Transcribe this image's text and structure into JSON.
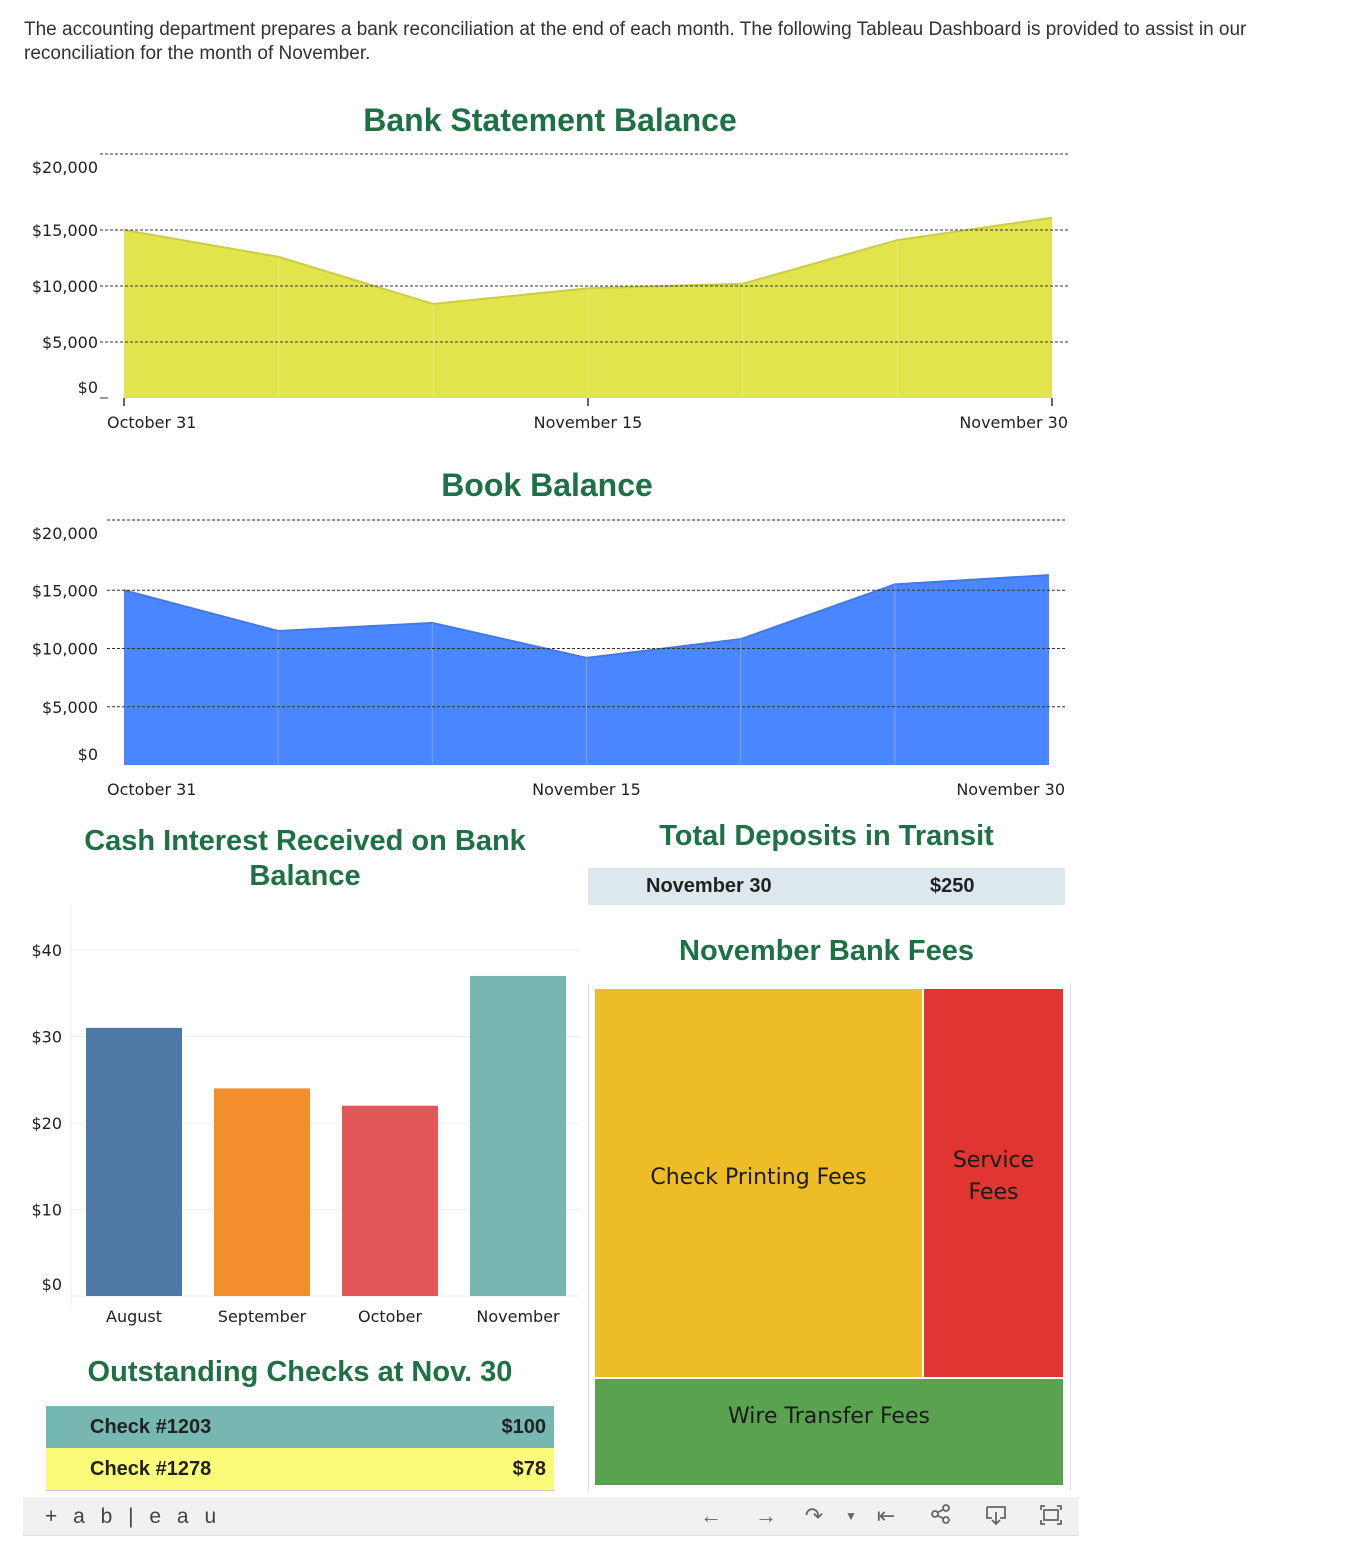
{
  "intro": "The accounting department prepares a bank reconciliation at the end of each month. The following Tableau Dashboard is provided to assist in our reconciliation for the month of November.",
  "colors": {
    "title_green": "#1e7045",
    "bank_fill": "#e1e44a",
    "book_fill": "#4a86ff",
    "bar_blue": "#4e78a5",
    "bar_orange": "#f28e2c",
    "bar_red": "#e1575a",
    "bar_teal": "#76b7b2",
    "fee_yellow": "#edbc26",
    "fee_red": "#e03531",
    "fee_green": "#59a24f"
  },
  "chart_data": [
    {
      "type": "area",
      "title": "Bank Statement Balance",
      "x_tick_labels": [
        "October 31",
        "November 15",
        "November 30"
      ],
      "y_tick_labels": [
        "$20,000",
        "$15,000",
        "$10,000",
        "$5,000",
        "$0"
      ],
      "ylim": [
        0,
        20000
      ],
      "values": [
        15000,
        12600,
        8400,
        9800,
        10200,
        14100,
        16100
      ]
    },
    {
      "type": "area",
      "title": "Book Balance",
      "x_tick_labels": [
        "October 31",
        "November 15",
        "November 30"
      ],
      "y_tick_labels": [
        "$20,000",
        "$15,000",
        "$10,000",
        "$5,000",
        "$0"
      ],
      "ylim": [
        0,
        20000
      ],
      "values": [
        15000,
        11500,
        12200,
        9200,
        10800,
        15500,
        16300
      ]
    },
    {
      "type": "bar",
      "title": "Cash Interest Received on Bank Balance",
      "categories": [
        "August",
        "September",
        "October",
        "November"
      ],
      "values": [
        31,
        24,
        22,
        37
      ],
      "y_tick_labels": [
        "$40",
        "$30",
        "$20",
        "$10",
        "$0"
      ],
      "ylim": [
        0,
        40
      ]
    }
  ],
  "deposits": {
    "title": "Total Deposits in Transit",
    "date": "November  30",
    "amount": "$250"
  },
  "fees": {
    "title": "November Bank Fees",
    "check_printing": "Check Printing Fees",
    "service_1": "Service",
    "service_2": "Fees",
    "wire": "Wire Transfer Fees"
  },
  "checks": {
    "title": "Outstanding Checks at Nov. 30",
    "rows": [
      {
        "label": "Check #1203",
        "amount": "$100"
      },
      {
        "label": "Check #1278",
        "amount": "$78"
      }
    ]
  },
  "toolbar": {
    "logo": "+ a b | e a u"
  }
}
